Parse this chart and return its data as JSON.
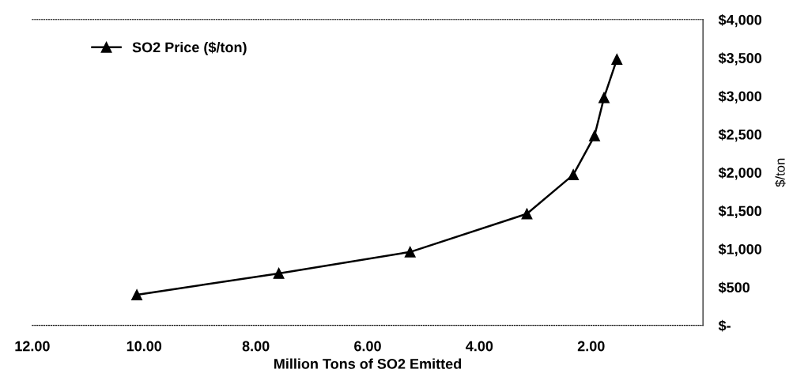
{
  "chart_data": {
    "type": "line",
    "xlabel": "Million Tons of SO2 Emitted",
    "y2label": "$/ton",
    "series": [
      {
        "name": "SO2 Price ($/ton)",
        "color": "#000000",
        "axis": "y2",
        "x": [
          10.13,
          7.59,
          5.24,
          3.15,
          2.32,
          1.94,
          1.77,
          1.54
        ],
        "values": [
          400,
          680,
          960,
          1460,
          1970,
          2480,
          2980,
          3480
        ]
      }
    ],
    "xlim": [
      12,
      0
    ],
    "xticks": [
      {
        "value": 12,
        "label": "12.00"
      },
      {
        "value": 10,
        "label": "10.00"
      },
      {
        "value": 8,
        "label": "8.00"
      },
      {
        "value": 6,
        "label": "6.00"
      },
      {
        "value": 4,
        "label": "4.00"
      },
      {
        "value": 2,
        "label": "2.00"
      }
    ],
    "y2lim": [
      0,
      4000
    ],
    "y2ticks": [
      {
        "value": 0,
        "label": "$-"
      },
      {
        "value": 500,
        "label": "$500"
      },
      {
        "value": 1000,
        "label": "$1,000"
      },
      {
        "value": 1500,
        "label": "$1,500"
      },
      {
        "value": 2000,
        "label": "$2,000"
      },
      {
        "value": 2500,
        "label": "$2,500"
      },
      {
        "value": 3000,
        "label": "$3,000"
      },
      {
        "value": 3500,
        "label": "$3,500"
      },
      {
        "value": 4000,
        "label": "$4,000"
      }
    ],
    "marker": "triangle",
    "line_style": "solid",
    "legend": "top left",
    "grid": false
  }
}
